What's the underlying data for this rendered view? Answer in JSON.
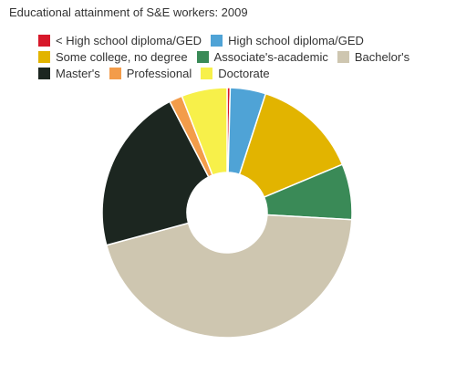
{
  "chart_data": {
    "type": "pie",
    "title": "Educational attainment of S&E workers: 2009",
    "categories": [
      "< High school diploma/GED",
      "High school diploma/GED",
      "Some college, no degree",
      "Associate's-academic",
      "Bachelor's",
      "Master's",
      "Professional",
      "Doctorate"
    ],
    "values": [
      0.4,
      4.6,
      13.7,
      7.2,
      44.9,
      21.6,
      1.7,
      5.9
    ],
    "colors": [
      "#d7182a",
      "#4fa3d6",
      "#e2b400",
      "#3a8a57",
      "#cec6b0",
      "#1c2620",
      "#f39c4a",
      "#f7f04a"
    ],
    "donut": true
  }
}
